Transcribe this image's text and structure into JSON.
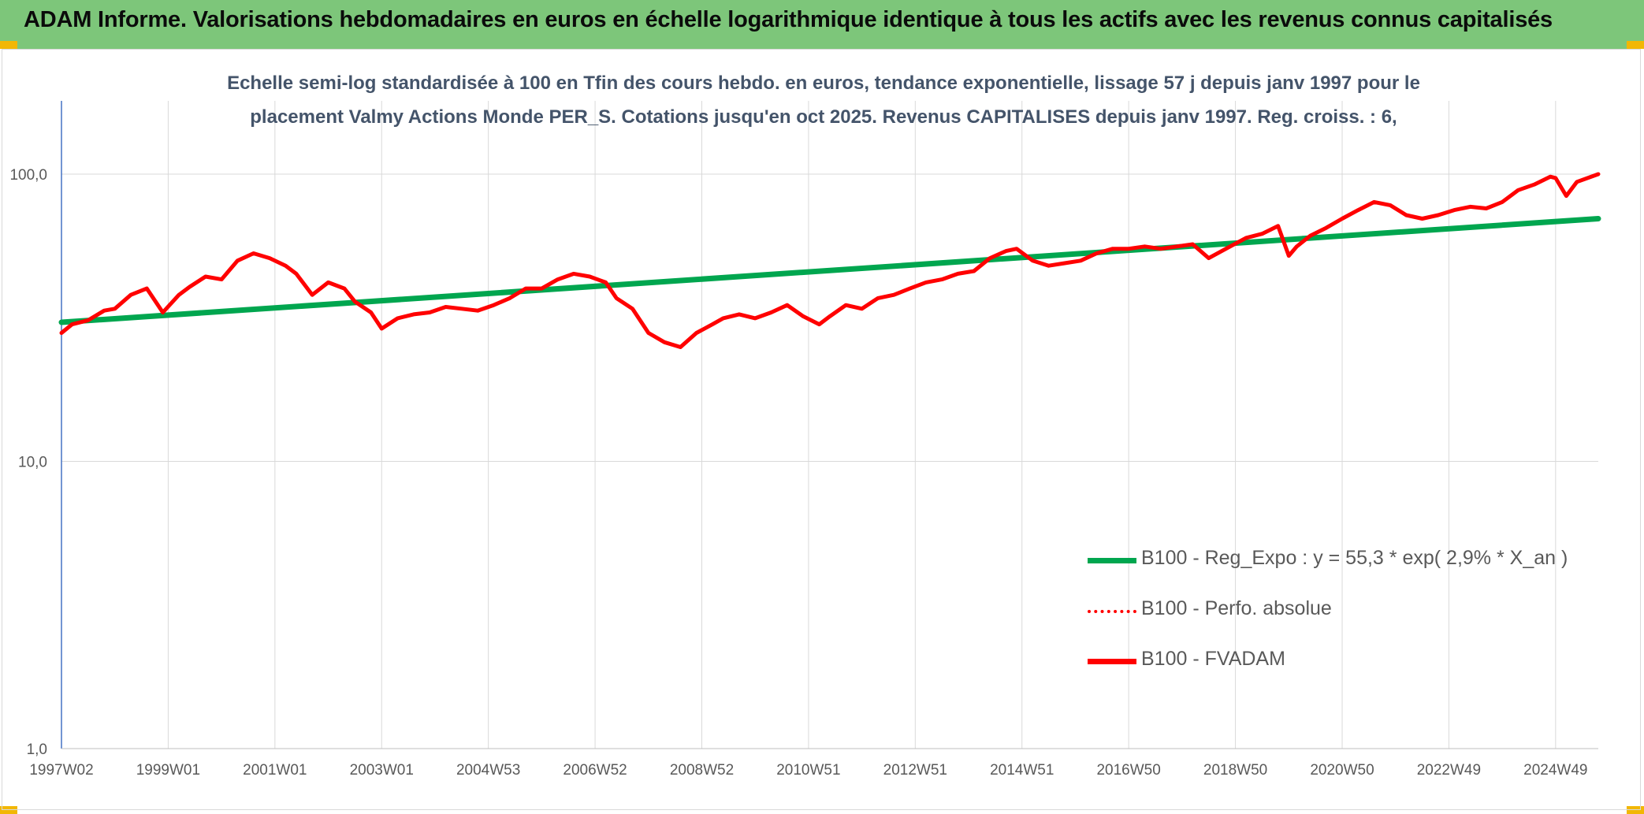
{
  "banner": {
    "title": "ADAM Informe. Valorisations hebdomadaires en euros en échelle logarithmique identique à tous les actifs avec les revenus connus capitalisés",
    "background": "#7dc67a",
    "corner_color": "#f2b705"
  },
  "chart_data": {
    "type": "line",
    "title_line1": "Echelle semi-log standardisée à 100 en Tfin des cours hebdo. en euros, tendance exponentielle, lissage 57 j depuis janv 1997 pour le",
    "title_line2": "placement Valmy Actions Monde PER_S. Cotations jusqu'en oct 2025. Revenus CAPITALISES depuis janv 1997. Reg. croiss. : 6,",
    "y_scale": "log",
    "ylim": [
      1,
      180
    ],
    "y_ticks": [
      1,
      10,
      100
    ],
    "y_tick_labels": [
      "1,0",
      "10,0",
      "100,0"
    ],
    "x_range": [
      1997.0,
      2025.8
    ],
    "x_tick_labels": [
      "1997W02",
      "1999W01",
      "2001W01",
      "2003W01",
      "2004W53",
      "2006W52",
      "2008W52",
      "2010W51",
      "2012W51",
      "2014W51",
      "2016W50",
      "2018W50",
      "2020W50",
      "2022W49",
      "2024W49"
    ],
    "x_tick_years": [
      1997.0,
      1999.0,
      2001.0,
      2003.0,
      2005.0,
      2007.0,
      2009.0,
      2011.0,
      2013.0,
      2015.0,
      2017.0,
      2019.0,
      2021.0,
      2023.0,
      2025.0
    ],
    "grid": true,
    "legend_position": "bottom-right",
    "legend": [
      {
        "label": "B100 - Reg_Expo : y = 55,3 * exp( 2,9% *  X_an )",
        "style": "solid",
        "color": "#00a64f"
      },
      {
        "label": "B100 - Perfo. absolue",
        "style": "dotted",
        "color": "#ff0000"
      },
      {
        "label": "B100 - FVADAM",
        "style": "solid",
        "color": "#ff0000"
      }
    ],
    "series": [
      {
        "name": "B100 - Reg_Expo : y = 55,3 * exp( 2,9% *  X_an )",
        "color": "#00a64f",
        "x": [
          1997.0,
          2025.8
        ],
        "y": [
          30.5,
          70.0
        ]
      },
      {
        "name": "B100 - FVADAM",
        "color": "#ff0000",
        "x": [
          1997.0,
          1997.2,
          1997.5,
          1997.8,
          1998.0,
          1998.3,
          1998.6,
          1998.9,
          1999.2,
          1999.4,
          1999.7,
          2000.0,
          2000.3,
          2000.6,
          2000.9,
          2001.2,
          2001.4,
          2001.7,
          2002.0,
          2002.3,
          2002.5,
          2002.8,
          2003.0,
          2003.3,
          2003.6,
          2003.9,
          2004.2,
          2004.5,
          2004.8,
          2005.1,
          2005.4,
          2005.7,
          2006.0,
          2006.3,
          2006.6,
          2006.9,
          2007.2,
          2007.4,
          2007.7,
          2008.0,
          2008.3,
          2008.6,
          2008.9,
          2009.2,
          2009.4,
          2009.7,
          2010.0,
          2010.3,
          2010.6,
          2010.9,
          2011.2,
          2011.4,
          2011.7,
          2012.0,
          2012.3,
          2012.6,
          2012.9,
          2013.2,
          2013.5,
          2013.8,
          2014.1,
          2014.4,
          2014.7,
          2014.9,
          2015.2,
          2015.5,
          2015.8,
          2016.1,
          2016.4,
          2016.7,
          2017.0,
          2017.3,
          2017.6,
          2017.9,
          2018.2,
          2018.5,
          2018.9,
          2019.2,
          2019.5,
          2019.8,
          2020.0,
          2020.15,
          2020.4,
          2020.7,
          2021.0,
          2021.3,
          2021.6,
          2021.9,
          2022.2,
          2022.5,
          2022.8,
          2023.1,
          2023.4,
          2023.7,
          2024.0,
          2024.3,
          2024.6,
          2024.9,
          2025.0,
          2025.2,
          2025.4,
          2025.8
        ],
        "y": [
          28.0,
          30.0,
          31.0,
          33.5,
          34.0,
          38.0,
          40.0,
          33.0,
          38.0,
          40.5,
          44.0,
          43.0,
          50.0,
          53.0,
          51.0,
          48.0,
          45.0,
          38.0,
          42.0,
          40.0,
          36.0,
          33.0,
          29.0,
          31.5,
          32.5,
          33.0,
          34.5,
          34.0,
          33.5,
          35.0,
          37.0,
          40.0,
          40.0,
          43.0,
          45.0,
          44.0,
          42.0,
          37.0,
          34.0,
          28.0,
          26.0,
          25.0,
          28.0,
          30.0,
          31.5,
          32.5,
          31.5,
          33.0,
          35.0,
          32.0,
          30.0,
          32.0,
          35.0,
          34.0,
          37.0,
          38.0,
          40.0,
          42.0,
          43.0,
          45.0,
          46.0,
          51.0,
          54.0,
          55.0,
          50.0,
          48.0,
          49.0,
          50.0,
          53.0,
          55.0,
          55.0,
          56.0,
          55.0,
          56.0,
          57.0,
          51.0,
          56.0,
          60.0,
          62.0,
          66.0,
          52.0,
          56.0,
          61.0,
          65.0,
          70.0,
          75.0,
          80.0,
          78.0,
          72.0,
          70.0,
          72.0,
          75.0,
          77.0,
          76.0,
          80.0,
          88.0,
          92.0,
          98.0,
          97.0,
          84.0,
          94.0,
          100.0
        ]
      }
    ]
  }
}
